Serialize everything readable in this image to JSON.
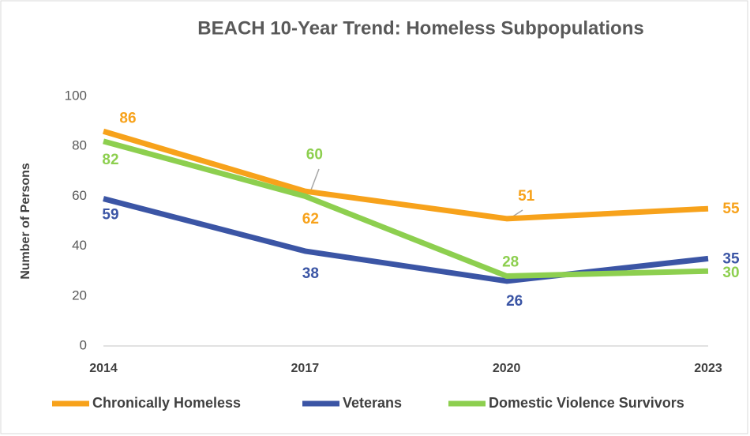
{
  "chart_data": {
    "type": "line",
    "title": "BEACH 10-Year Trend: Homeless Subpopulations",
    "y_label": "Number of Persons",
    "categories": [
      "2014",
      "2017",
      "2020",
      "2023"
    ],
    "series": [
      {
        "name": "Chronically Homeless",
        "color": "#f7a21b",
        "values": [
          86,
          62,
          51,
          55
        ]
      },
      {
        "name": "Veterans",
        "color": "#3b55a5",
        "values": [
          59,
          38,
          26,
          35
        ]
      },
      {
        "name": "Domestic Violence Survivors",
        "color": "#8dcf4f",
        "values": [
          82,
          60,
          28,
          30
        ]
      }
    ],
    "ylim": [
      0,
      100
    ],
    "yticks": [
      0,
      20,
      40,
      60,
      80,
      100
    ],
    "grid": false,
    "legend": "bottom"
  }
}
